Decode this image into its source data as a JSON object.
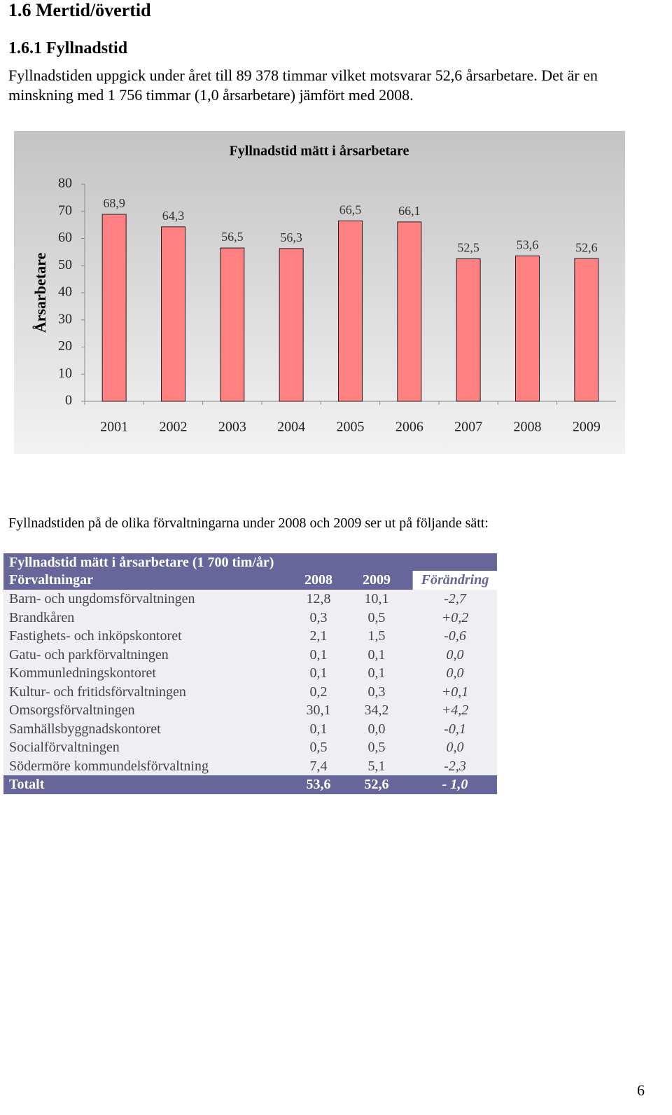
{
  "heading": "1.6 Mertid/övertid",
  "subheading": "1.6.1 Fyllnadstid",
  "intro": "Fyllnadstiden uppgick under året till 89 378 timmar vilket motsvarar 52,6 årsarbetare. Det är en minskning med 1 756 timmar (1,0 årsarbetare) jämfört med 2008.",
  "chart_data": {
    "type": "bar",
    "title": "Fyllnadstid mätt i årsarbetare",
    "y_label": "Årsarbetare",
    "categories": [
      "2001",
      "2002",
      "2003",
      "2004",
      "2005",
      "2006",
      "2007",
      "2008",
      "2009"
    ],
    "values": [
      68.9,
      64.3,
      56.5,
      56.3,
      66.5,
      66.1,
      52.5,
      53.6,
      52.6
    ],
    "value_labels": [
      "68,9",
      "64,3",
      "56,5",
      "56,3",
      "66,5",
      "66,1",
      "52,5",
      "53,6",
      "52,6"
    ],
    "color": "#ff8080",
    "ylim": [
      0,
      80
    ],
    "yticks": [
      0,
      10,
      20,
      30,
      40,
      50,
      60,
      70,
      80
    ]
  },
  "lead": "Fyllnadstiden på de olika förvaltningarna under 2008 och 2009 ser ut på följande sätt:",
  "table": {
    "title": "Fyllnadstid mätt i årsarbetare (1 700 tim/år)",
    "header": [
      "Förvaltningar",
      "2008",
      "2009",
      "Förändring"
    ],
    "rows": [
      [
        "Barn- och ungdomsförvaltningen",
        "12,8",
        "10,1",
        "-2,7"
      ],
      [
        "Brandkåren",
        "0,3",
        "0,5",
        "+0,2"
      ],
      [
        "Fastighets- och inköpskontoret",
        "2,1",
        "1,5",
        "-0,6"
      ],
      [
        "Gatu- och parkförvaltningen",
        "0,1",
        "0,1",
        "0,0"
      ],
      [
        "Kommunledningskontoret",
        "0,1",
        "0,1",
        "0,0"
      ],
      [
        "Kultur- och fritidsförvaltningen",
        "0,2",
        "0,3",
        "+0,1"
      ],
      [
        "Omsorgsförvaltningen",
        "30,1",
        "34,2",
        "+4,2"
      ],
      [
        "Samhällsbyggnadskontoret",
        "0,1",
        "0,0",
        "-0,1"
      ],
      [
        "Socialförvaltningen",
        "0,5",
        "0,5",
        "0,0"
      ],
      [
        "Södermöre kommundelsförvaltning",
        "7,4",
        "5,1",
        "-2,3"
      ]
    ],
    "total": [
      "Totalt",
      "53,6",
      "52,6",
      "- 1,0"
    ]
  },
  "page_number": "6"
}
